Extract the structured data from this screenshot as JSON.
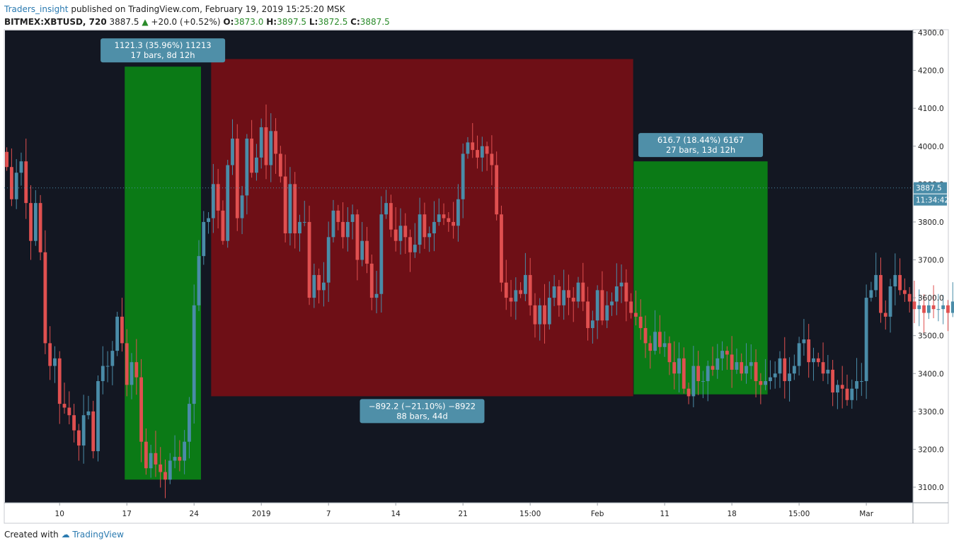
{
  "header": {
    "author": "Traders_insight",
    "published": "published on TradingView.com, February 19, 2019 15:25:20 MSK",
    "symbol": "BITMEX:XBTUSD, 720",
    "last": "3887.5",
    "change": "+20.0 (+0.52%)",
    "open_label": "O:",
    "open": "3873.0",
    "high_label": "H:",
    "high": "3897.5",
    "low_label": "L:",
    "low": "3872.5",
    "close_label": "C:",
    "close": "3887.5"
  },
  "footer": {
    "created": "Created with",
    "brand": "TradingView"
  },
  "colors": {
    "background": "#131722",
    "up": "#4a8ca8",
    "down": "#e05050",
    "green_box": "#0b7a16",
    "red_box": "#6e0f16",
    "tag": "#4f8fa8"
  },
  "chart_data": {
    "type": "candlestick",
    "ylim": [
      3050,
      4320
    ],
    "yticks": [
      "4300.0",
      "4200.0",
      "4100.0",
      "4000.0",
      "3900.0",
      "3800.0",
      "3700.0",
      "3600.0",
      "3500.0",
      "3400.0",
      "3300.0",
      "3200.0",
      "3100.0"
    ],
    "xticks": [
      {
        "label": "10",
        "i": 11
      },
      {
        "label": "17",
        "i": 25
      },
      {
        "label": "24",
        "i": 39
      },
      {
        "label": "2019",
        "i": 53
      },
      {
        "label": "7",
        "i": 67
      },
      {
        "label": "14",
        "i": 81
      },
      {
        "label": "21",
        "i": 95
      },
      {
        "label": "15:00",
        "i": 109
      },
      {
        "label": "Feb",
        "i": 123
      },
      {
        "label": "11",
        "i": 137
      },
      {
        "label": "18",
        "i": 151
      },
      {
        "label": "15:00",
        "i": 165
      },
      {
        "label": "Mar",
        "i": 179
      }
    ],
    "price_label": "3887.5",
    "countdown": "11:34:42",
    "closes": [
      3945,
      3860,
      3930,
      3960,
      3850,
      3750,
      3850,
      3720,
      3480,
      3420,
      3440,
      3320,
      3310,
      3290,
      3250,
      3210,
      3290,
      3300,
      3195,
      3380,
      3420,
      3420,
      3460,
      3550,
      3480,
      3370,
      3430,
      3390,
      3220,
      3150,
      3190,
      3160,
      3140,
      3120,
      3170,
      3180,
      3170,
      3220,
      3320,
      3580,
      3710,
      3800,
      3810,
      3900,
      3830,
      3750,
      3950,
      4020,
      3810,
      3870,
      4020,
      3930,
      3970,
      4050,
      3950,
      4040,
      3980,
      3920,
      3770,
      3900,
      3770,
      3800,
      3800,
      3600,
      3660,
      3620,
      3640,
      3760,
      3830,
      3800,
      3760,
      3800,
      3820,
      3700,
      3750,
      3690,
      3600,
      3610,
      3820,
      3850,
      3780,
      3750,
      3790,
      3760,
      3720,
      3740,
      3820,
      3760,
      3770,
      3800,
      3820,
      3810,
      3800,
      3790,
      3860,
      3980,
      4010,
      3990,
      3970,
      4000,
      3980,
      3950,
      3820,
      3640,
      3600,
      3590,
      3620,
      3610,
      3660,
      3580,
      3530,
      3580,
      3530,
      3600,
      3630,
      3580,
      3620,
      3600,
      3590,
      3640,
      3590,
      3520,
      3540,
      3620,
      3540,
      3580,
      3590,
      3630,
      3640,
      3590,
      3560,
      3550,
      3520,
      3480,
      3460,
      3510,
      3470,
      3480,
      3430,
      3400,
      3440,
      3360,
      3340,
      3420,
      3380,
      3380,
      3420,
      3410,
      3440,
      3460,
      3450,
      3410,
      3430,
      3400,
      3420,
      3430,
      3380,
      3370,
      3380,
      3390,
      3400,
      3440,
      3380,
      3400,
      3420,
      3480,
      3490,
      3430,
      3440,
      3430,
      3400,
      3410,
      3350,
      3370,
      3360,
      3330,
      3360,
      3380,
      3380,
      3600,
      3620,
      3660,
      3560,
      3550,
      3630,
      3660,
      3620,
      3610,
      3590,
      3570,
      3580,
      3560,
      3580,
      3570,
      3570,
      3580,
      3560,
      3590,
      3600,
      3580,
      3580,
      3610,
      3600,
      3650,
      3750,
      3860,
      3880,
      3890
    ],
    "boxes": [
      {
        "kind": "gain",
        "from_i": 25,
        "to_i": 40,
        "top": 4210,
        "bottom": 3120,
        "tag": [
          "1121.3 (35.96%) 11213",
          "17 bars, 8d 12h"
        ],
        "tag_pos": "above"
      },
      {
        "kind": "loss",
        "from_i": 43,
        "to_i": 130,
        "top": 4230,
        "bottom": 3340,
        "tag": [
          "−892.2 (−21.10%) −8922",
          "88 bars, 44d"
        ],
        "tag_pos": "below"
      },
      {
        "kind": "gain",
        "from_i": 131,
        "to_i": 158,
        "top": 3960,
        "bottom": 3345,
        "tag": [
          "616.7 (18.44%) 6167",
          "27 bars, 13d 12h"
        ],
        "tag_pos": "above"
      }
    ]
  }
}
